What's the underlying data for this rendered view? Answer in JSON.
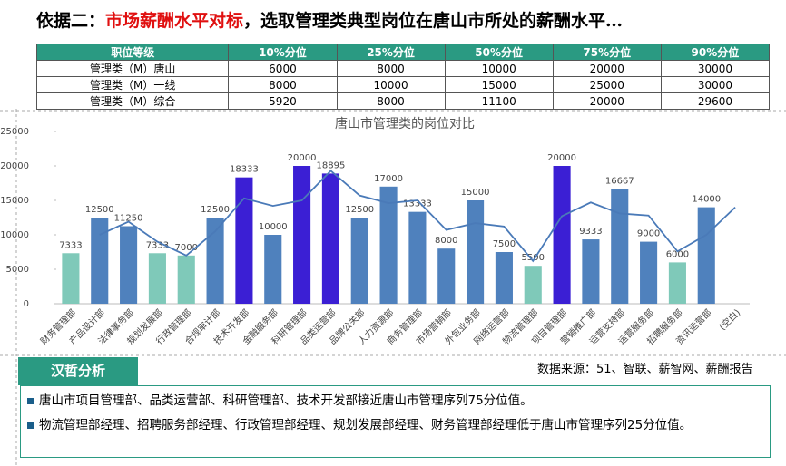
{
  "header": {
    "title_parts": [
      "依据二：",
      "市场薪酬水平对标",
      "，选取管理类典型岗位在唐山市所处的薪酬水平…"
    ]
  },
  "table": {
    "header": [
      "职位等级",
      "10%分位",
      "25%分位",
      "50%分位",
      "75%分位",
      "90%分位"
    ],
    "rows": [
      [
        "管理类（M）唐山",
        "6000",
        "8000",
        "10000",
        "20000",
        "30000"
      ],
      [
        "管理类（M）一线",
        "8000",
        "10000",
        "15000",
        "25000",
        "30000"
      ],
      [
        "管理类（M）综合",
        "5920",
        "8000",
        "11100",
        "20000",
        "29600"
      ]
    ]
  },
  "chart_data": {
    "type": "bar",
    "title": "唐山市管理类的岗位对比",
    "categories": [
      "财务管理部",
      "产品设计部",
      "法律事务部",
      "规划发展部",
      "行政管理部",
      "合规审计部",
      "技术开发部",
      "金融服务部",
      "科研管理部",
      "品类运营部",
      "品牌公关部",
      "人力资源部",
      "商务管理部",
      "市场营销部",
      "外包业务部",
      "网络运营部",
      "物流管理部",
      "项目管理部",
      "营销推广部",
      "运营支持部",
      "运营服务部",
      "招聘服务部",
      "资讯运营部",
      "(空白)"
    ],
    "series": [
      {
        "type": "bar",
        "values": [
          7333,
          12500,
          11250,
          7333,
          7000,
          12500,
          18333,
          10000,
          20000,
          18895,
          12500,
          17000,
          13333,
          8000,
          15000,
          7500,
          5500,
          20000,
          9333,
          16667,
          9000,
          6000,
          14000,
          null
        ],
        "colors": [
          "#7fc9b9",
          "#4f81bd",
          "#4f81bd",
          "#7fc9b9",
          "#7fc9b9",
          "#4f81bd",
          "#3b1fd4",
          "#4f81bd",
          "#3b1fd4",
          "#3b1fd4",
          "#4f81bd",
          "#4f81bd",
          "#4f81bd",
          "#4f81bd",
          "#4f81bd",
          "#4f81bd",
          "#7fc9b9",
          "#3b1fd4",
          "#4f81bd",
          "#4f81bd",
          "#4f81bd",
          "#7fc9b9",
          "#4f81bd",
          "#4f81bd"
        ]
      },
      {
        "type": "line",
        "color": "#4a7ab8",
        "values": [
          null,
          10000,
          11900,
          9000,
          7000,
          10500,
          15300,
          14200,
          15000,
          19300,
          15700,
          14600,
          15000,
          10700,
          11700,
          11200,
          6200,
          12700,
          14700,
          13100,
          12800,
          7600,
          10000,
          14000
        ]
      }
    ],
    "ylim": [
      0,
      25000
    ],
    "yticks": [
      0,
      5000,
      10000,
      15000,
      20000,
      25000
    ]
  },
  "source": "数据来源：51、智联、薪智网、薪酬报告",
  "analysis": {
    "title": "汉哲分析",
    "bullets": [
      "唐山市项目管理部、品类运营部、科研管理部、技术开发部接近唐山市管理序列75分位值。",
      "物流管理部经理、招聘服务部经理、行政管理部经理、规划发展部经理、财务管理部经理低于唐山市管理序列25分位值。"
    ]
  }
}
